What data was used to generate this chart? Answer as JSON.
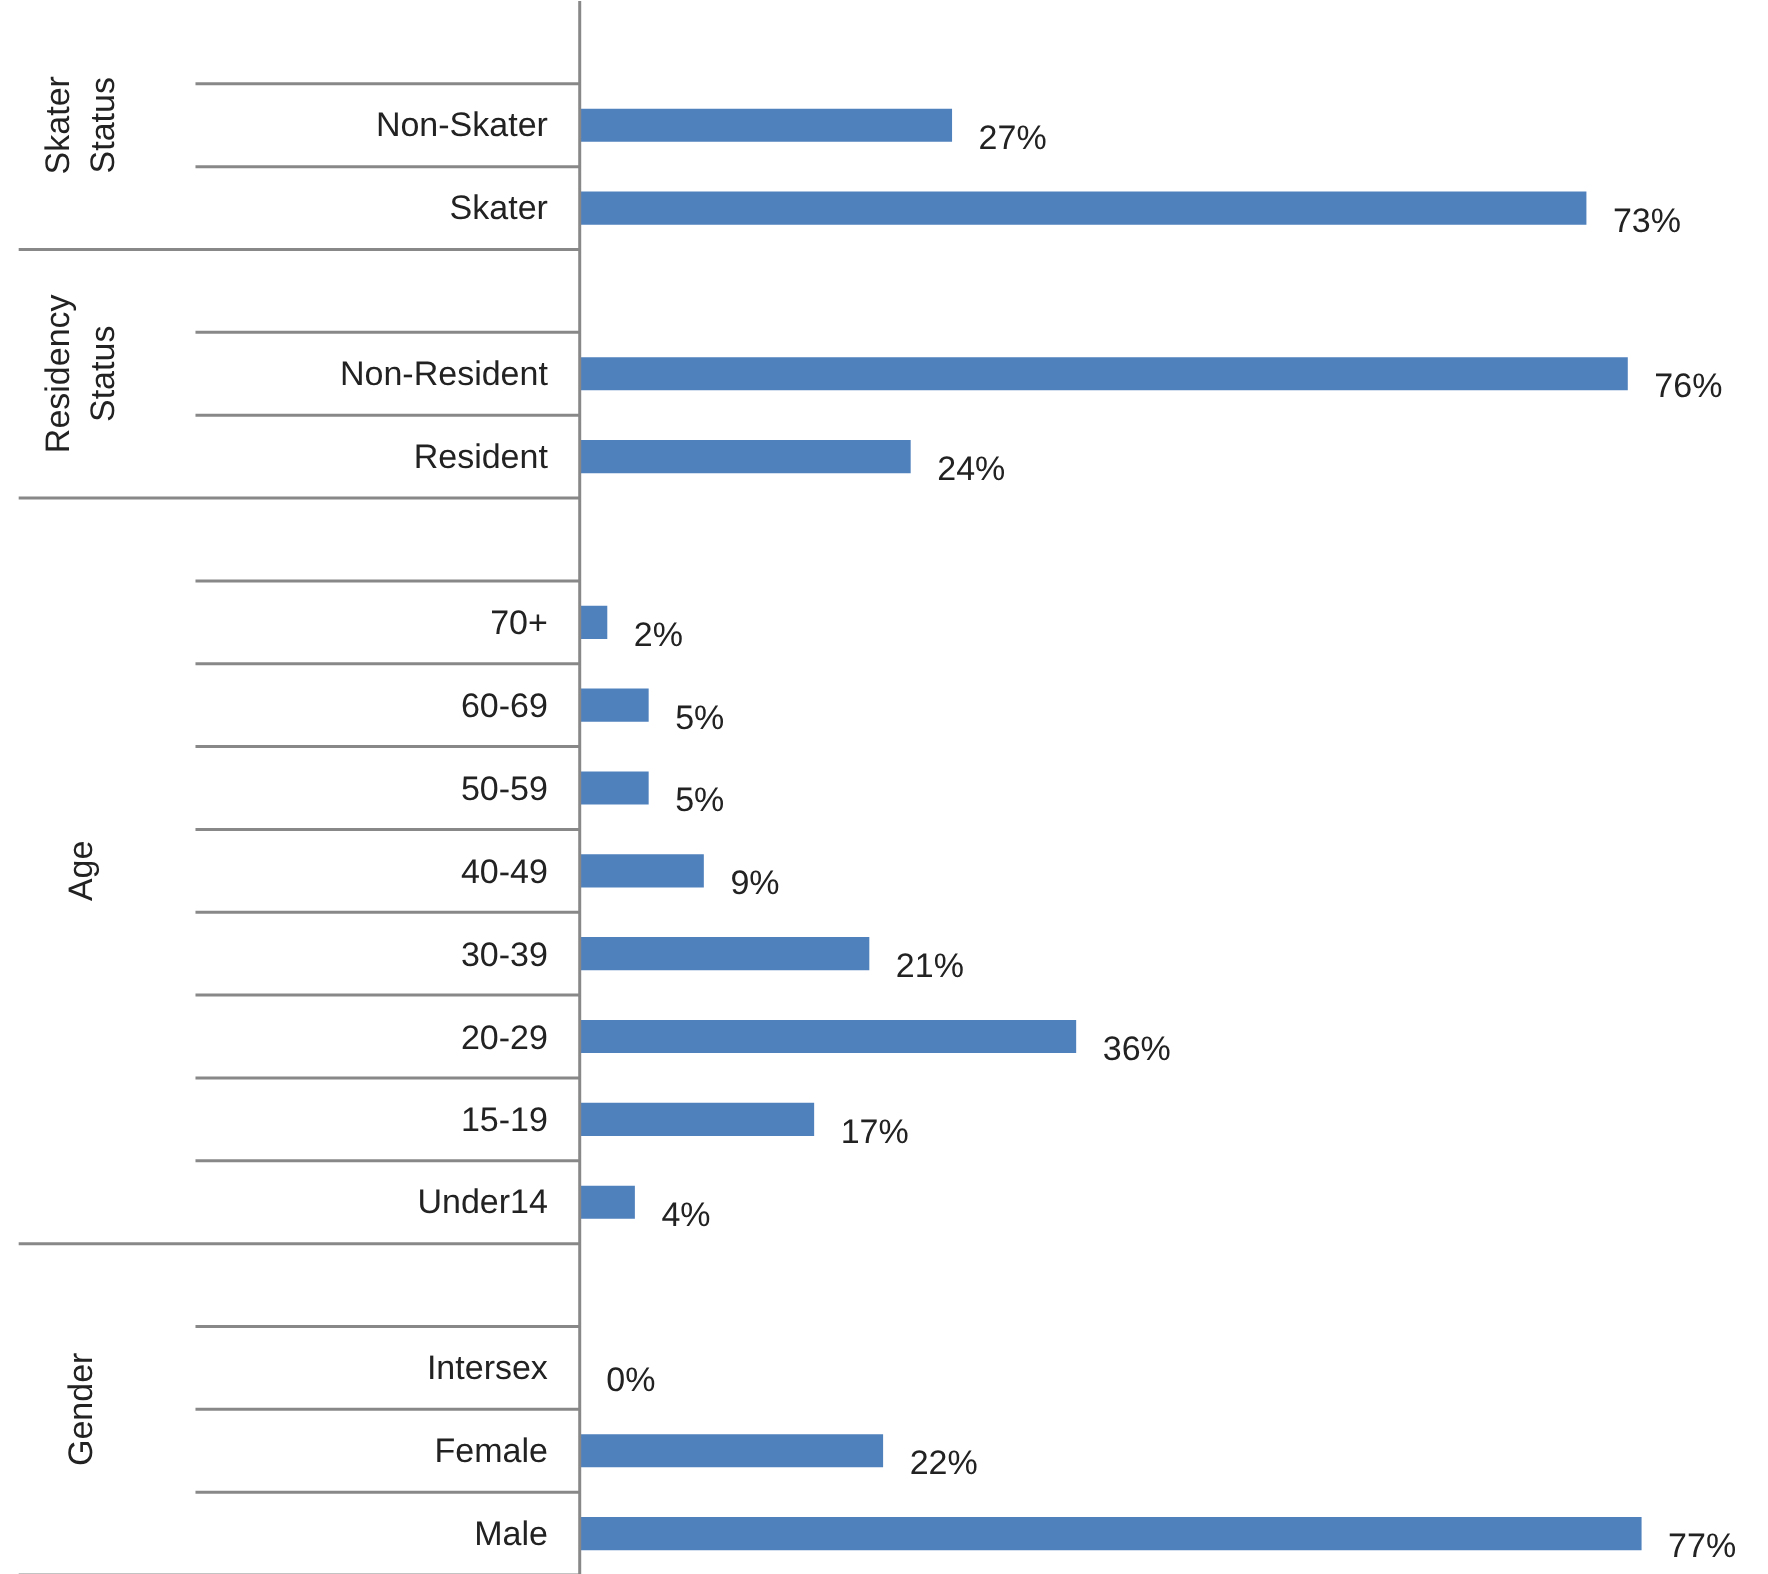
{
  "chart_data": {
    "type": "bar",
    "orientation": "horizontal",
    "categories": [
      null,
      "Non-Skater",
      "Skater",
      null,
      "Non-Resident",
      "Resident",
      null,
      "70+",
      "60-69",
      "50-59",
      "40-49",
      "30-39",
      "20-29",
      "15-19",
      "Under14",
      null,
      "Intersex",
      "Female",
      "Male"
    ],
    "values": [
      null,
      27,
      73,
      null,
      76,
      24,
      null,
      2,
      5,
      5,
      9,
      21,
      36,
      17,
      4,
      null,
      0,
      22,
      77
    ],
    "value_labels": [
      null,
      "27%",
      "73%",
      null,
      "76%",
      "24%",
      null,
      "2%",
      "5%",
      "5%",
      "9%",
      "21%",
      "36%",
      "17%",
      "4%",
      null,
      "0%",
      "22%",
      "77%"
    ],
    "color": "#4f81bd",
    "annotations": [
      "Skater Status",
      "Residency Status",
      "Age",
      "Gender"
    ],
    "grid": false
  }
}
